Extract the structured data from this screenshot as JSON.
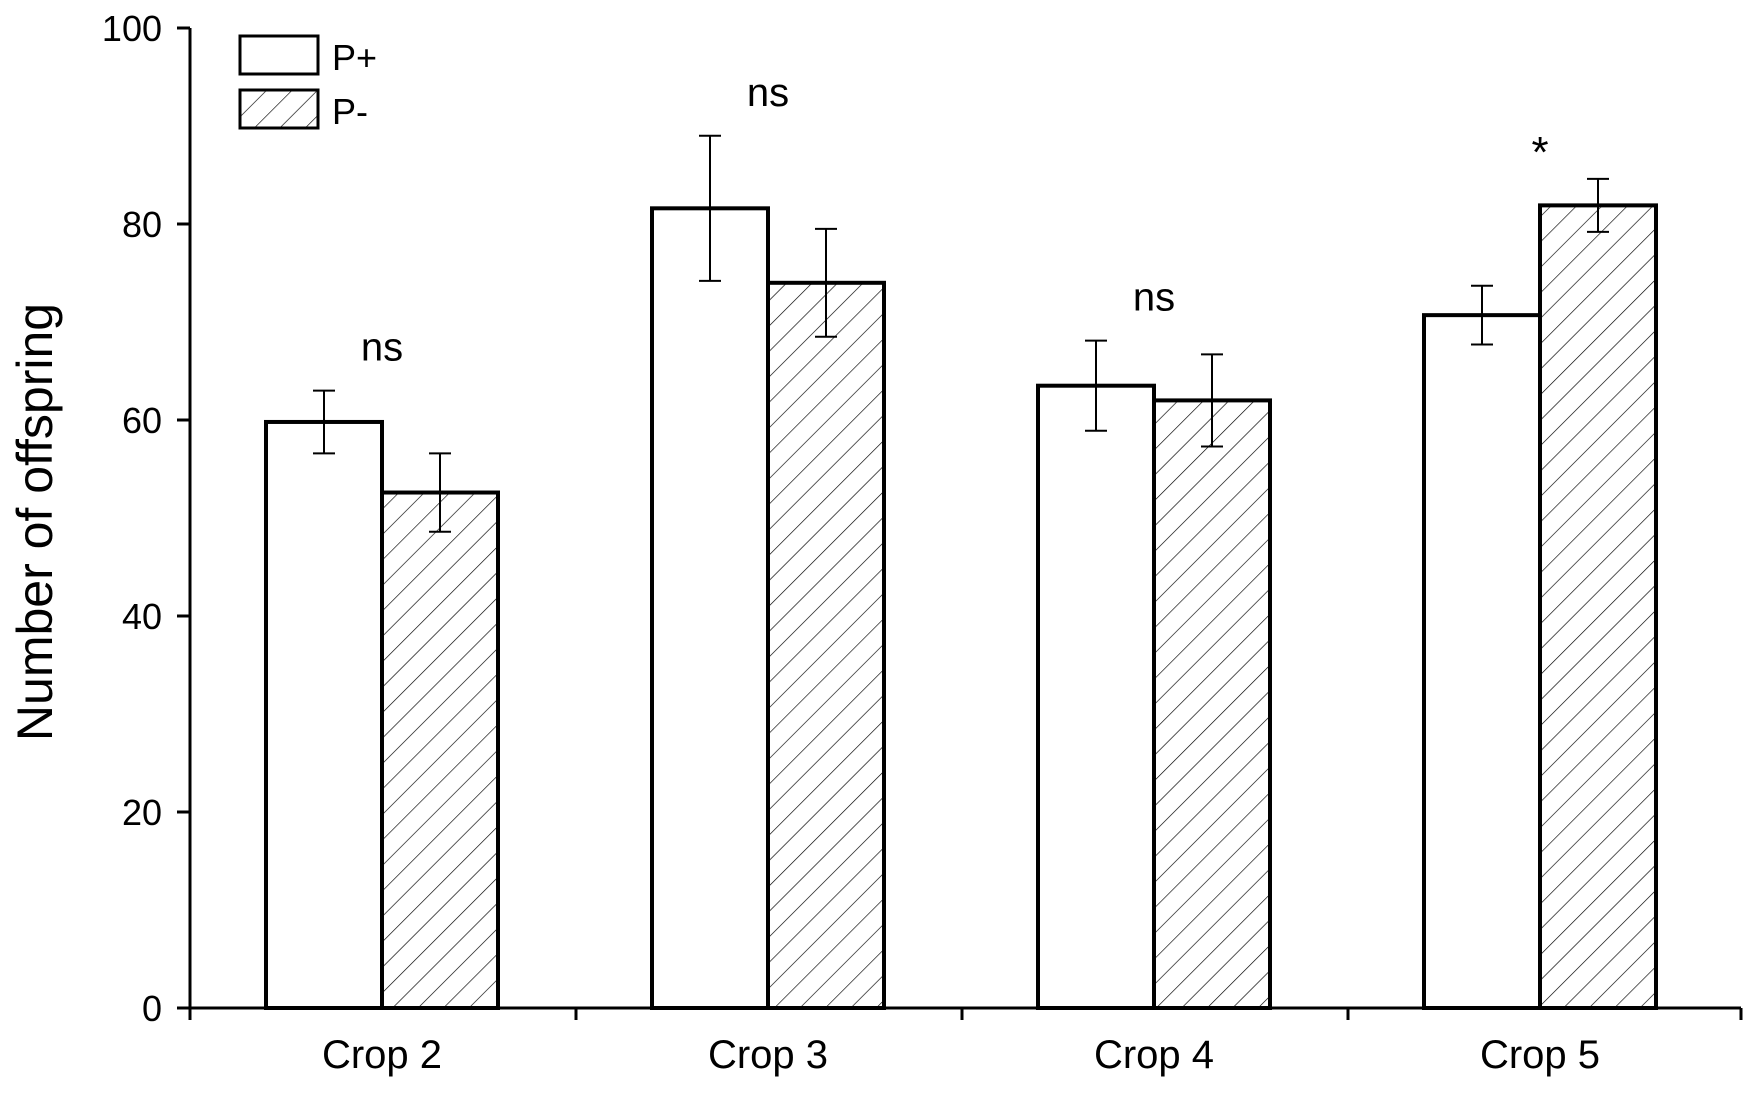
{
  "chart_data": {
    "type": "bar",
    "categories": [
      "Crop 2",
      "Crop 3",
      "Crop 4",
      "Crop 5"
    ],
    "series": [
      {
        "name": "P+",
        "values": [
          59.8,
          81.6,
          63.5,
          70.7
        ],
        "errors": [
          3.2,
          7.4,
          4.6,
          3.0
        ]
      },
      {
        "name": "P-",
        "values": [
          52.6,
          74.0,
          62.0,
          81.9
        ],
        "errors": [
          4.0,
          5.5,
          4.7,
          2.7
        ]
      }
    ],
    "annotations": [
      "ns",
      "ns",
      "ns",
      "*"
    ],
    "ylabel": "Number of offspring",
    "xlabel": "",
    "ylim": [
      0,
      100
    ],
    "yticks": [
      "0",
      "20",
      "40",
      "60",
      "80",
      "100"
    ],
    "legend_position": "top-left",
    "grid": false,
    "colors": {
      "p_plus_fill": "#ffffff",
      "p_minus_hatch": "#000000",
      "axis": "#000000"
    }
  }
}
